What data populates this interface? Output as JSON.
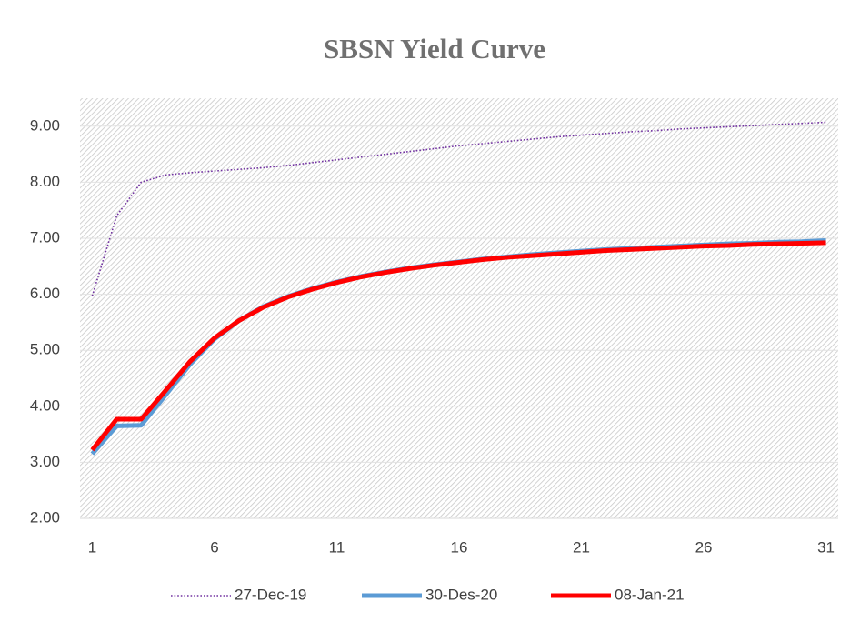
{
  "chart_data": {
    "type": "line",
    "title": "SBSN Yield Curve",
    "x": [
      1,
      2,
      3,
      4,
      5,
      6,
      7,
      8,
      9,
      10,
      11,
      12,
      13,
      14,
      15,
      16,
      17,
      18,
      19,
      20,
      21,
      22,
      23,
      24,
      25,
      26,
      27,
      28,
      29,
      30,
      31
    ],
    "xlim": [
      0.5,
      31.5
    ],
    "xticks": [
      1,
      6,
      11,
      16,
      21,
      26,
      31
    ],
    "ylim": [
      2,
      9.5
    ],
    "yticks": [
      {
        "value": 2,
        "label": "2.00"
      },
      {
        "value": 3,
        "label": "3.00"
      },
      {
        "value": 4,
        "label": "4.00"
      },
      {
        "value": 5,
        "label": "5.00"
      },
      {
        "value": 6,
        "label": "6.00"
      },
      {
        "value": 7,
        "label": "7.00"
      },
      {
        "value": 8,
        "label": "8.00"
      },
      {
        "value": 9,
        "label": "9.00"
      }
    ],
    "grid": true,
    "legend": "bottom",
    "series": [
      {
        "name": "27-Dec-19",
        "color": "#7030a0",
        "style": "dotted",
        "values": [
          5.97,
          7.4,
          8.0,
          8.13,
          8.17,
          8.2,
          8.23,
          8.26,
          8.3,
          8.35,
          8.4,
          8.45,
          8.5,
          8.55,
          8.6,
          8.65,
          8.69,
          8.73,
          8.77,
          8.81,
          8.84,
          8.87,
          8.9,
          8.92,
          8.95,
          8.97,
          8.99,
          9.01,
          9.03,
          9.05,
          9.07
        ]
      },
      {
        "name": "30-Des-20",
        "color": "#5b9bd5",
        "style": "solid",
        "values": [
          3.15,
          3.65,
          3.66,
          4.2,
          4.75,
          5.2,
          5.53,
          5.78,
          5.96,
          6.1,
          6.22,
          6.32,
          6.4,
          6.47,
          6.53,
          6.58,
          6.63,
          6.67,
          6.71,
          6.74,
          6.77,
          6.8,
          6.82,
          6.84,
          6.86,
          6.88,
          6.9,
          6.91,
          6.93,
          6.94,
          6.96
        ]
      },
      {
        "name": "08-Jan-21",
        "color": "#ff0000",
        "style": "solid",
        "values": [
          3.22,
          3.77,
          3.77,
          4.28,
          4.8,
          5.22,
          5.53,
          5.77,
          5.95,
          6.09,
          6.21,
          6.31,
          6.39,
          6.46,
          6.52,
          6.57,
          6.62,
          6.66,
          6.69,
          6.72,
          6.75,
          6.78,
          6.8,
          6.82,
          6.84,
          6.86,
          6.87,
          6.89,
          6.9,
          6.91,
          6.92
        ]
      }
    ]
  }
}
